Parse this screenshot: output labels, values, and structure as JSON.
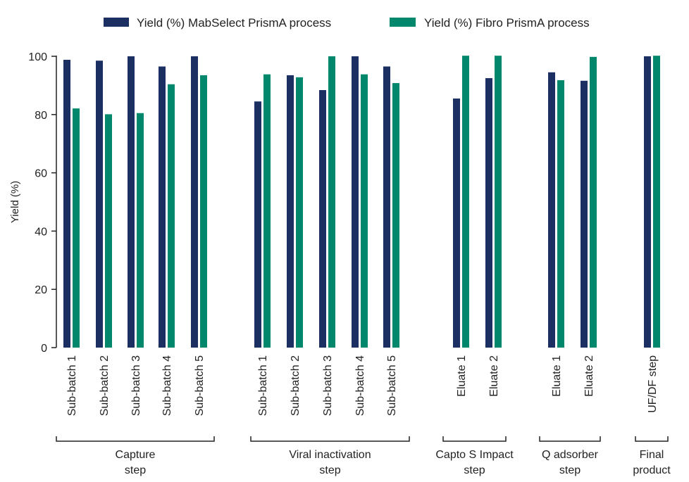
{
  "chart_data": {
    "type": "bar",
    "title": "",
    "ylabel": "Yield (%)",
    "xlabel": "",
    "ylim": [
      0,
      100
    ],
    "yticks": [
      0,
      20,
      40,
      60,
      80,
      100
    ],
    "grid": false,
    "legend_placement": "top",
    "categories": [
      "Sub-batch 1",
      "Sub-batch 2",
      "Sub-batch 3",
      "Sub-batch 4",
      "Sub-batch 5",
      "Sub-batch 1",
      "Sub-batch 2",
      "Sub-batch 3",
      "Sub-batch 4",
      "Sub-batch 5",
      "Eluate 1",
      "Eluate 2",
      "Eluate 1",
      "Eluate 2",
      "UF/DF step"
    ],
    "groups": [
      {
        "label_lines": [
          "Capture",
          "step"
        ],
        "count": 5
      },
      {
        "label_lines": [
          "Viral inactivation",
          "step"
        ],
        "count": 5
      },
      {
        "label_lines": [
          "Capto S Impact",
          "step"
        ],
        "count": 2
      },
      {
        "label_lines": [
          "Q adsorber",
          "step"
        ],
        "count": 2
      },
      {
        "label_lines": [
          "Final",
          "product"
        ],
        "count": 1
      }
    ],
    "series": [
      {
        "name": "Yield (%) MabSelect PrismA process",
        "color": "#1b2f63",
        "values": [
          98.8,
          98.5,
          100,
          96.5,
          100,
          84.5,
          93.5,
          88.4,
          100,
          96.5,
          85.5,
          92.5,
          94.5,
          91.6,
          100
        ]
      },
      {
        "name": "Yield (%) Fibro PrismA process",
        "color": "#00876c",
        "values": [
          82.1,
          80.1,
          80.5,
          90.4,
          93.5,
          93.8,
          92.8,
          100,
          93.8,
          90.8,
          100.2,
          100.2,
          91.8,
          99.8,
          100.2
        ]
      }
    ]
  }
}
